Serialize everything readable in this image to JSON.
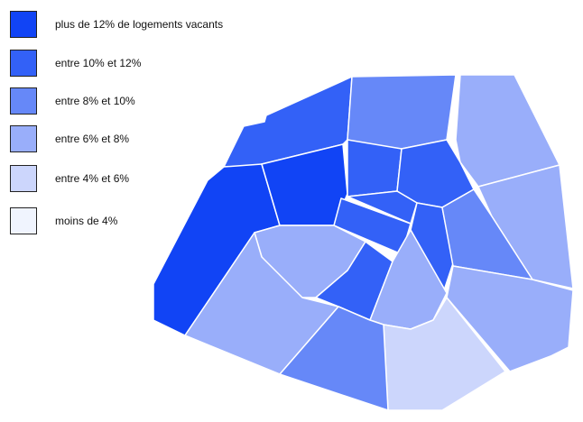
{
  "legend": {
    "items": [
      {
        "label": "plus de 12% de logements vacants",
        "color": "#1144f5"
      },
      {
        "label": "entre 10% et 12%",
        "color": "#3361f7"
      },
      {
        "label": "entre 8% et 10%",
        "color": "#6688f8"
      },
      {
        "label": "entre 6% et 8%",
        "color": "#99aefa"
      },
      {
        "label": "entre 4% et 6%",
        "color": "#ccd6fc"
      },
      {
        "label": "moins de 4%",
        "color": "#f0f4fe"
      }
    ]
  },
  "map": {
    "regions": [
      {
        "id": "nw",
        "class": 1
      },
      {
        "id": "n",
        "class": 2
      },
      {
        "id": "ne",
        "class": 3
      },
      {
        "id": "e",
        "class": 3
      },
      {
        "id": "w",
        "class": 0
      },
      {
        "id": "center-west",
        "class": 0
      },
      {
        "id": "center-north-1",
        "class": 1
      },
      {
        "id": "center-north-2",
        "class": 1
      },
      {
        "id": "center-small",
        "class": 1
      },
      {
        "id": "center-1",
        "class": 1
      },
      {
        "id": "center-2",
        "class": 1
      },
      {
        "id": "east-inner",
        "class": 2
      },
      {
        "id": "southeast",
        "class": 3
      },
      {
        "id": "southwest-inner",
        "class": 3
      },
      {
        "id": "southwest",
        "class": 3
      },
      {
        "id": "south-inner-1",
        "class": 1
      },
      {
        "id": "south-inner-2",
        "class": 3
      },
      {
        "id": "south",
        "class": 4
      },
      {
        "id": "south-west-2",
        "class": 2
      }
    ]
  }
}
